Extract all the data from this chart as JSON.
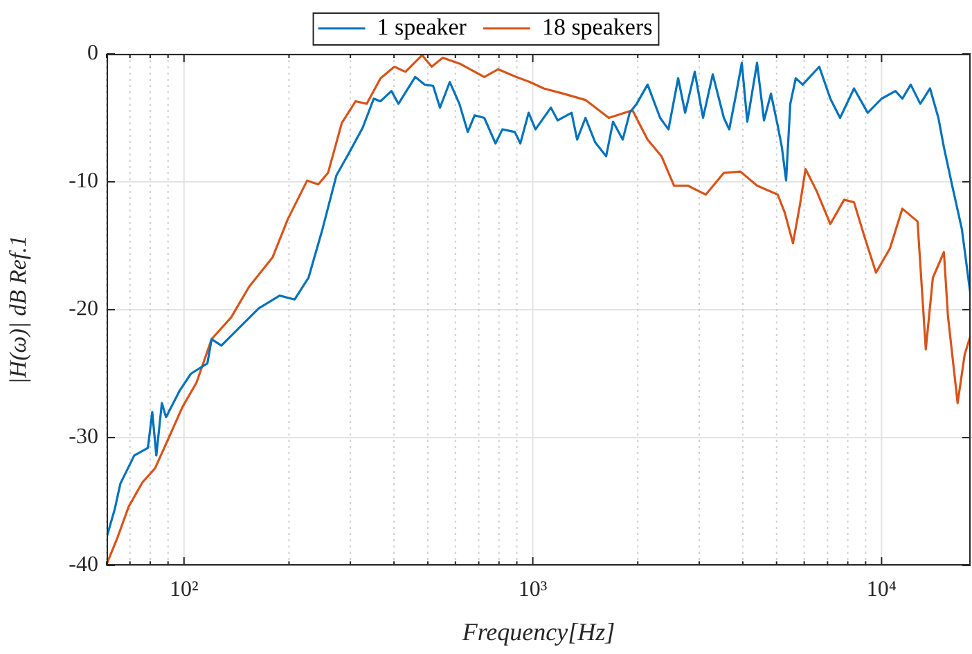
{
  "chart_data": {
    "type": "line",
    "xlabel": "Frequency[Hz]",
    "ylabel": "|H(ω)| dB Ref.1",
    "log": "x",
    "grid": true,
    "legend": "top",
    "line_style": "solid",
    "marker": "none",
    "xlim": [
      60,
      18000
    ],
    "ylim": [
      -40,
      0
    ],
    "xticks": [
      {
        "value": 60,
        "label": null
      },
      {
        "value": 70,
        "label": null
      },
      {
        "value": 80,
        "label": null
      },
      {
        "value": 90,
        "label": null
      },
      {
        "value": 100,
        "label": "10²"
      },
      {
        "value": 200,
        "label": null
      },
      {
        "value": 300,
        "label": null
      },
      {
        "value": 400,
        "label": null
      },
      {
        "value": 500,
        "label": null
      },
      {
        "value": 600,
        "label": null
      },
      {
        "value": 700,
        "label": null
      },
      {
        "value": 800,
        "label": null
      },
      {
        "value": 900,
        "label": null
      },
      {
        "value": 1000,
        "label": "10³"
      },
      {
        "value": 2000,
        "label": null
      },
      {
        "value": 3000,
        "label": null
      },
      {
        "value": 4000,
        "label": null
      },
      {
        "value": 5000,
        "label": null
      },
      {
        "value": 6000,
        "label": null
      },
      {
        "value": 7000,
        "label": null
      },
      {
        "value": 8000,
        "label": null
      },
      {
        "value": 9000,
        "label": null
      },
      {
        "value": 10000,
        "label": "10⁴"
      }
    ],
    "yticks": [
      -40,
      -30,
      -20,
      -10,
      0
    ],
    "series": [
      {
        "name": "1 speaker",
        "color": "#0072bd",
        "x": [
          60,
          63.3,
          65.7,
          72,
          78.8,
          81.1,
          83.3,
          86.4,
          88.8,
          97.3,
          104.7,
          116.7,
          120,
          128,
          163.7,
          188,
          207.6,
          227.5,
          249.5,
          273.5,
          296.5,
          325,
          350,
          366,
          393.5,
          412,
          460,
          490,
          518,
          542,
          578,
          616,
          651,
          681,
          726,
          782,
          818,
          888,
          921,
          973,
          1018,
          1127,
          1179,
          1292,
          1340,
          1416,
          1509,
          1623,
          1699,
          1811,
          1896,
          1985,
          2134,
          2318,
          2449,
          2611,
          2734,
          2913,
          3077,
          3281,
          3530,
          3658,
          3830,
          3974,
          4121,
          4395,
          4602,
          4818,
          5037,
          5178,
          5324,
          5474,
          5675,
          5942,
          6628,
          7130,
          7603,
          8336,
          9125,
          10000,
          10960,
          11470,
          12120,
          12910,
          13770,
          14550,
          15090,
          15940,
          16990,
          18000
        ],
        "values": [
          -37.8,
          -35.6,
          -33.6,
          -31.4,
          -30.8,
          -28,
          -31.4,
          -27.3,
          -28.4,
          -26.3,
          -25,
          -24.2,
          -22.3,
          -22.8,
          -19.9,
          -18.9,
          -19.2,
          -17.5,
          -13.7,
          -9.5,
          -7.8,
          -5.8,
          -3.5,
          -3.7,
          -2.9,
          -3.9,
          -1.8,
          -2.4,
          -2.5,
          -4.2,
          -2.2,
          -3.9,
          -6.1,
          -4.8,
          -5,
          -7,
          -5.9,
          -6.1,
          -7,
          -4.6,
          -5.9,
          -4.2,
          -5.2,
          -4.6,
          -6.7,
          -5,
          -6.9,
          -8,
          -5.3,
          -6.7,
          -4.6,
          -3.9,
          -2.4,
          -5,
          -5.9,
          -1.9,
          -4.6,
          -1.4,
          -5,
          -1.6,
          -5,
          -5.9,
          -3.1,
          -0.7,
          -5.3,
          -0.7,
          -5.2,
          -3.1,
          -5.6,
          -7.3,
          -9.9,
          -3.9,
          -1.9,
          -2.4,
          -1,
          -3.5,
          -5,
          -2.7,
          -4.6,
          -3.5,
          -2.9,
          -3.5,
          -2.4,
          -3.9,
          -2.7,
          -5,
          -7.3,
          -10.3,
          -13.7,
          -18.9
        ]
      },
      {
        "name": "18 speakers",
        "color": "#d95319",
        "x": [
          60,
          64.5,
          69.4,
          76,
          82.6,
          88.8,
          99,
          108.6,
          120,
          136.5,
          153.7,
          179.5,
          198.6,
          225.5,
          242.6,
          258.8,
          283.4,
          310.5,
          334,
          366,
          401,
          431.5,
          481.6,
          513,
          552,
          622,
          726,
          796,
          896,
          982,
          1076,
          1222,
          1416,
          1652,
          1931,
          2134,
          2339,
          2541,
          2782,
          3133,
          3530,
          3938,
          4395,
          5037,
          5276,
          5572,
          5834,
          6053,
          6508,
          7130,
          7812,
          8336,
          8958,
          9636,
          10570,
          11470,
          12680,
          13390,
          14030,
          15090,
          15500,
          16520,
          17310,
          18000
        ],
        "values": [
          -39.9,
          -37.8,
          -35.4,
          -33.5,
          -32.4,
          -30.5,
          -27.6,
          -25.7,
          -22.3,
          -20.6,
          -18.2,
          -15.9,
          -12.9,
          -9.9,
          -10.2,
          -9.3,
          -5.4,
          -3.7,
          -3.9,
          -1.9,
          -1,
          -1.4,
          -0.1,
          -1,
          -0.3,
          -0.8,
          -1.8,
          -1.2,
          -1.8,
          -2.2,
          -2.7,
          -3.1,
          -3.6,
          -5,
          -4.4,
          -6.7,
          -8,
          -10.3,
          -10.3,
          -11,
          -9.3,
          -9.2,
          -10.3,
          -11,
          -12.4,
          -14.8,
          -11.8,
          -9,
          -10.7,
          -13.3,
          -11.4,
          -11.6,
          -14.4,
          -17.1,
          -15.2,
          -12.1,
          -13.1,
          -23.1,
          -17.5,
          -15.5,
          -20.5,
          -27.3,
          -23.5,
          -22
        ]
      }
    ]
  }
}
